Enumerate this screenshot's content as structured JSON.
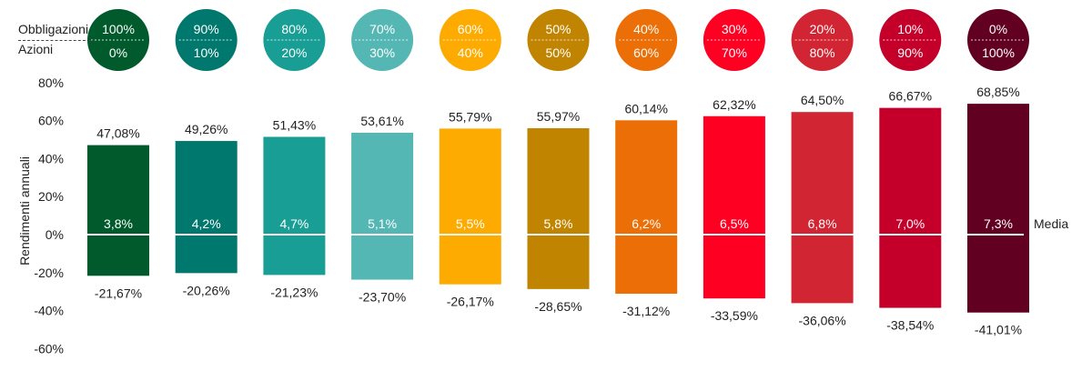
{
  "chart_data": {
    "type": "bar",
    "row_labels": {
      "bonds": "Obbligazioni",
      "stocks": "Azioni"
    },
    "ylabel": "Rendimenti annuali",
    "ylim": [
      -60,
      80
    ],
    "yticks": [
      80,
      60,
      40,
      20,
      0,
      -20,
      -40,
      -60
    ],
    "ytick_labels": [
      "80%",
      "60%",
      "40%",
      "20%",
      "0%",
      "-20%",
      "-40%",
      "-60%"
    ],
    "mean_label": "Media",
    "categories": [
      "100/0",
      "90/10",
      "80/20",
      "70/30",
      "60/40",
      "50/50",
      "40/60",
      "30/70",
      "20/80",
      "10/90",
      "0/100"
    ],
    "mix": [
      {
        "bonds": "100%",
        "stocks": "0%"
      },
      {
        "bonds": "90%",
        "stocks": "10%"
      },
      {
        "bonds": "80%",
        "stocks": "20%"
      },
      {
        "bonds": "70%",
        "stocks": "30%"
      },
      {
        "bonds": "60%",
        "stocks": "40%"
      },
      {
        "bonds": "50%",
        "stocks": "50%"
      },
      {
        "bonds": "40%",
        "stocks": "60%"
      },
      {
        "bonds": "30%",
        "stocks": "70%"
      },
      {
        "bonds": "20%",
        "stocks": "80%"
      },
      {
        "bonds": "10%",
        "stocks": "90%"
      },
      {
        "bonds": "0%",
        "stocks": "100%"
      }
    ],
    "series": [
      {
        "values_max": [
          47.08,
          49.26,
          51.43,
          53.61,
          55.79,
          55.97,
          60.14,
          62.32,
          64.5,
          66.67,
          68.85
        ],
        "labels_max": [
          "47,08%",
          "49,26%",
          "51,43%",
          "53,61%",
          "55,79%",
          "55,97%",
          "60,14%",
          "62,32%",
          "64,50%",
          "66,67%",
          "68,85%"
        ],
        "values_min": [
          -21.67,
          -20.26,
          -21.23,
          -23.7,
          -26.17,
          -28.65,
          -31.12,
          -33.59,
          -36.06,
          -38.54,
          -41.01
        ],
        "labels_min": [
          "-21,67%",
          "-20,26%",
          "-21,23%",
          "-23,70%",
          "-26,17%",
          "-28,65%",
          "-31,12%",
          "-33,59%",
          "-36,06%",
          "-38,54%",
          "-41,01%"
        ],
        "values_mean": [
          3.8,
          4.2,
          4.7,
          5.1,
          5.5,
          5.8,
          6.2,
          6.5,
          6.8,
          7.0,
          7.3
        ],
        "labels_mean": [
          "3,8%",
          "4,2%",
          "4,7%",
          "5,1%",
          "5,5%",
          "5,8%",
          "6,2%",
          "6,5%",
          "6,8%",
          "7,0%",
          "7,3%"
        ]
      }
    ],
    "colors": [
      "#005a2b",
      "#00786e",
      "#189e94",
      "#55b7b4",
      "#fdab00",
      "#c08400",
      "#eb6f06",
      "#fe0022",
      "#d22533",
      "#c4002a",
      "#620021"
    ],
    "grid": false,
    "legend": "top"
  }
}
